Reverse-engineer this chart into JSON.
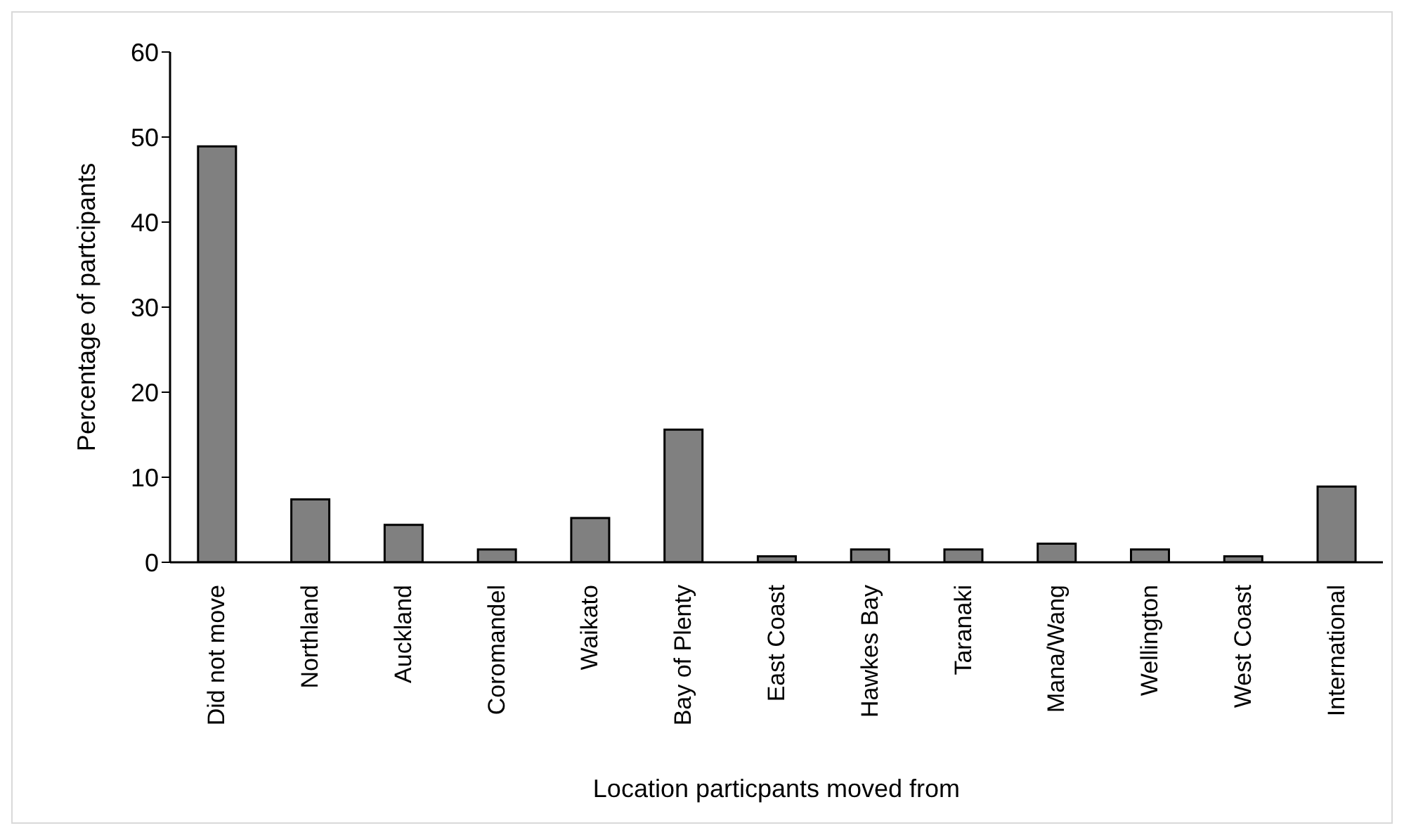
{
  "chart_data": {
    "type": "bar",
    "xlabel": "Location particpants moved from",
    "ylabel": "Percentage of partcipants",
    "categories": [
      "Did not move",
      "Northland",
      "Auckland",
      "Coromandel",
      "Waikato",
      "Bay of Plenty",
      "East Coast",
      "Hawkes Bay",
      "Taranaki",
      "Mana/Wang",
      "Wellington",
      "West Coast",
      "International"
    ],
    "values": [
      48.9,
      7.4,
      4.4,
      1.5,
      5.2,
      15.6,
      0.7,
      1.5,
      1.5,
      2.2,
      1.5,
      0.7,
      8.9
    ],
    "color": "#808080",
    "ylim": [
      0,
      60
    ],
    "yticks": [
      0,
      10,
      20,
      30,
      40,
      50,
      60
    ],
    "grid": false
  }
}
